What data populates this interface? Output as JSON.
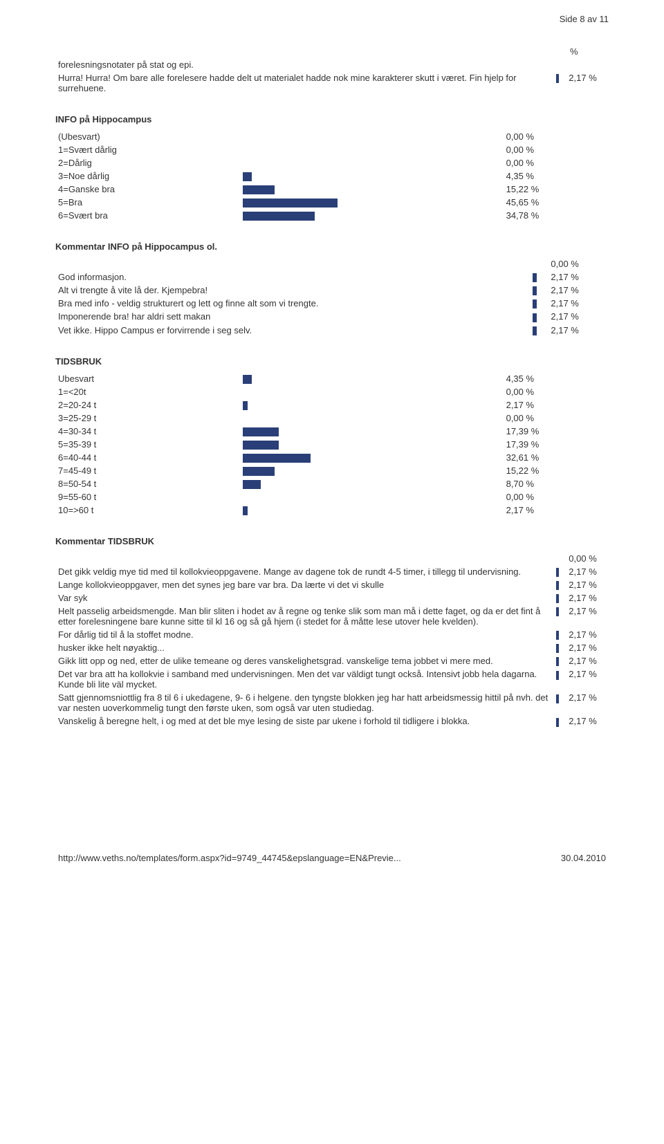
{
  "colors": {
    "bar": "#2a3f77",
    "text": "#333333",
    "bg": "#ffffff"
  },
  "pageHeader": "Side 8 av 11",
  "intro": {
    "rows": [
      {
        "text": "forelesningsnotater på stat og epi.",
        "bar": 0,
        "val": ""
      },
      {
        "text": "Hurra! Hurra! Om bare alle forelesere hadde delt ut materialet hadde nok mine karakterer skutt i været. Fin hjelp for surrehuene.",
        "bar": 4,
        "val": "2,17 %"
      }
    ],
    "headerPct": "%"
  },
  "info": {
    "title": "INFO på Hippocampus",
    "maxBarWidth": 200,
    "rows": [
      {
        "label": "(Ubesvart)",
        "pct": 0.0,
        "pctText": "0,00 %"
      },
      {
        "label": "1=Svært dårlig",
        "pct": 0.0,
        "pctText": "0,00 %"
      },
      {
        "label": "2=Dårlig",
        "pct": 0.0,
        "pctText": "0,00 %"
      },
      {
        "label": "3=Noe dårlig",
        "pct": 4.35,
        "pctText": "4,35 %"
      },
      {
        "label": "4=Ganske bra",
        "pct": 15.22,
        "pctText": "15,22 %"
      },
      {
        "label": "5=Bra",
        "pct": 45.65,
        "pctText": "45,65 %"
      },
      {
        "label": "6=Svært bra",
        "pct": 34.78,
        "pctText": "34,78 %"
      }
    ]
  },
  "kommentarInfo": {
    "title": "Kommentar INFO på Hippocampus ol.",
    "rows": [
      {
        "text": "",
        "bar": 0,
        "val": "0,00 %"
      },
      {
        "text": "God informasjon.",
        "bar": 6,
        "val": "2,17 %"
      },
      {
        "text": "Alt vi trengte å vite lå der. Kjempebra!",
        "bar": 6,
        "val": "2,17 %"
      },
      {
        "text": "Bra med info - veldig strukturert og lett og finne alt som vi trengte.",
        "bar": 6,
        "val": "2,17 %"
      },
      {
        "text": "Imponerende bra! har aldri sett makan",
        "bar": 6,
        "val": "2,17 %"
      },
      {
        "text": "Vet ikke. Hippo Campus er forvirrende i seg selv.",
        "bar": 6,
        "val": "2,17 %"
      }
    ]
  },
  "tidsbruk": {
    "title": "TIDSBRUK",
    "maxBarWidth": 200,
    "rows": [
      {
        "label": "Ubesvart",
        "pct": 4.35,
        "pctText": "4,35 %"
      },
      {
        "label": "1=<20t",
        "pct": 0.0,
        "pctText": "0,00 %"
      },
      {
        "label": "2=20-24 t",
        "pct": 2.17,
        "pctText": "2,17 %"
      },
      {
        "label": "3=25-29 t",
        "pct": 0.0,
        "pctText": "0,00 %"
      },
      {
        "label": "4=30-34 t",
        "pct": 17.39,
        "pctText": "17,39 %"
      },
      {
        "label": "5=35-39 t",
        "pct": 17.39,
        "pctText": "17,39 %"
      },
      {
        "label": "6=40-44 t",
        "pct": 32.61,
        "pctText": "32,61 %"
      },
      {
        "label": "7=45-49 t",
        "pct": 15.22,
        "pctText": "15,22 %"
      },
      {
        "label": "8=50-54 t",
        "pct": 8.7,
        "pctText": "8,70 %"
      },
      {
        "label": "9=55-60 t",
        "pct": 0.0,
        "pctText": "0,00 %"
      },
      {
        "label": "10=>60 t",
        "pct": 2.17,
        "pctText": "2,17 %"
      }
    ]
  },
  "kommentarTidsbruk": {
    "title": "Kommentar TIDSBRUK",
    "rows": [
      {
        "text": "",
        "bar": 0,
        "val": "0,00 %"
      },
      {
        "text": "Det gikk veldig mye tid med til kollokvieoppgavene. Mange av dagene tok de rundt 4-5 timer, i tillegg til undervisning.",
        "bar": 4,
        "val": "2,17 %"
      },
      {
        "text": "Lange kollokvieoppgaver, men det synes jeg bare var bra. Da lærte vi det vi skulle",
        "bar": 4,
        "val": "2,17 %"
      },
      {
        "text": "Var syk",
        "bar": 4,
        "val": "2,17 %"
      },
      {
        "text": "Helt passelig arbeidsmengde. Man blir sliten i hodet av å regne og tenke slik som man må i dette faget, og da er det fint å etter forelesningene bare kunne sitte til kl 16 og så gå hjem (i stedet for å måtte lese utover hele kvelden).",
        "bar": 4,
        "val": "2,17 %"
      },
      {
        "text": "For dårlig tid til å la stoffet modne.",
        "bar": 4,
        "val": "2,17 %"
      },
      {
        "text": "husker ikke helt nøyaktig...",
        "bar": 4,
        "val": "2,17 %"
      },
      {
        "text": "Gikk litt opp og ned, etter de ulike temeane og deres vanskelighetsgrad. vanskelige tema jobbet vi mere med.",
        "bar": 4,
        "val": "2,17 %"
      },
      {
        "text": "Det var bra att ha kollokvie i samband med undervisningen. Men det var väldigt tungt också. Intensivt jobb hela dagarna. Kunde bli lite väl mycket.",
        "bar": 4,
        "val": "2,17 %"
      },
      {
        "text": "Satt gjennomsniottlig fra 8 til 6 i ukedagene, 9- 6 i helgene. den tyngste blokken jeg har hatt arbeidsmessig hittil på nvh. det var nesten uoverkommelig tungt den første uken, som også var uten studiedag.",
        "bar": 4,
        "val": "2,17 %"
      },
      {
        "text": "Vanskelig å beregne helt, i og med at det ble mye lesing de siste par ukene i forhold til tidligere i blokka.",
        "bar": 4,
        "val": "2,17 %"
      }
    ]
  },
  "footer": {
    "url": "http://www.veths.no/templates/form.aspx?id=9749_44745&epslanguage=EN&Previe...",
    "date": "30.04.2010"
  },
  "barScale": 3.0
}
